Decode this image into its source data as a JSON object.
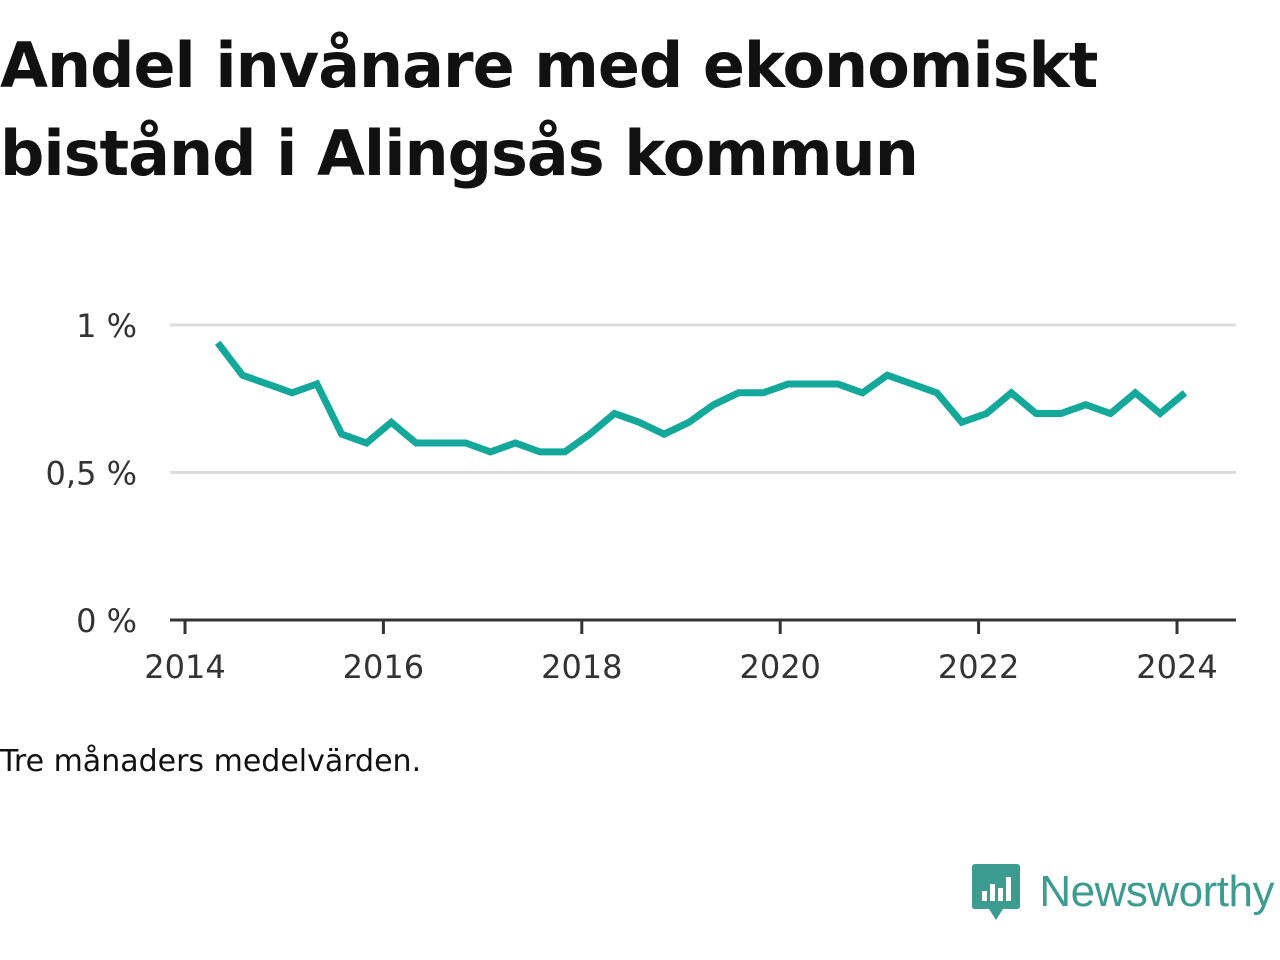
{
  "title_line1": "Andel invånare med ekonomiskt",
  "title_line2": "bistånd i Alingsås kommun",
  "note": "Tre månaders medelvärden.",
  "brand": {
    "name": "Newsworthy",
    "icon": "bar-chart-speech-bubble-icon",
    "color": "#3d9c90"
  },
  "chart_data": {
    "type": "line",
    "title": "Andel invånare med ekonomiskt bistånd i Alingsås kommun",
    "xlabel": "",
    "ylabel": "",
    "xlim": [
      2014,
      2024.6
    ],
    "ylim": [
      0,
      1.0
    ],
    "x_ticks": [
      2014,
      2016,
      2018,
      2020,
      2022,
      2024
    ],
    "x_tick_labels": [
      "2014",
      "2016",
      "2018",
      "2020",
      "2022",
      "2024"
    ],
    "y_ticks": [
      0,
      0.5,
      1.0
    ],
    "y_tick_labels": [
      "0 %",
      "0,5 %",
      "1 %"
    ],
    "grid": true,
    "line_color": "#14a89b",
    "series": [
      {
        "x": [
          2014.33,
          2014.58,
          2014.83,
          2015.08,
          2015.33,
          2015.58,
          2015.83,
          2016.08,
          2016.33,
          2016.58,
          2016.83,
          2017.08,
          2017.33,
          2017.58,
          2017.83,
          2018.08,
          2018.33,
          2018.58,
          2018.83,
          2019.08,
          2019.33,
          2019.58,
          2019.83,
          2020.08,
          2020.33,
          2020.58,
          2020.83,
          2021.08,
          2021.33,
          2021.58,
          2021.83,
          2022.08,
          2022.33,
          2022.58,
          2022.83,
          2023.08,
          2023.33,
          2023.58,
          2023.83,
          2024.08
        ],
        "values": [
          0.94,
          0.83,
          0.8,
          0.77,
          0.8,
          0.63,
          0.6,
          0.67,
          0.6,
          0.6,
          0.6,
          0.57,
          0.6,
          0.57,
          0.57,
          0.63,
          0.7,
          0.67,
          0.63,
          0.67,
          0.73,
          0.77,
          0.77,
          0.8,
          0.8,
          0.8,
          0.77,
          0.83,
          0.8,
          0.77,
          0.67,
          0.7,
          0.77,
          0.7,
          0.7,
          0.73,
          0.7,
          0.77,
          0.7,
          0.77
        ]
      }
    ]
  }
}
